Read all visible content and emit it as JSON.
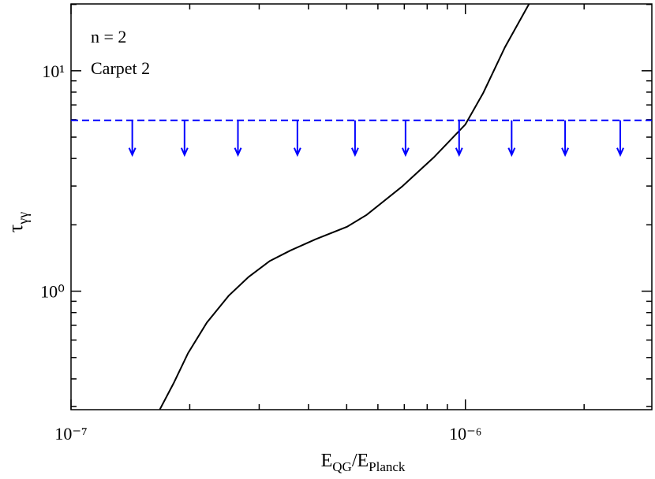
{
  "chart_data": {
    "type": "line",
    "annotations": [
      "n = 2",
      "Carpet 2"
    ],
    "xlabel": [
      "E",
      "QG",
      "/E",
      "Planck"
    ],
    "ylabel": [
      "τ",
      "γγ"
    ],
    "xlog": true,
    "ylog": true,
    "xlim": [
      1e-07,
      2.97e-06
    ],
    "ylim": [
      0.29,
      20.1
    ],
    "xticks": [
      {
        "value": 1e-07,
        "label": "10⁻⁷"
      },
      {
        "value": 1e-06,
        "label": "10⁻⁶"
      }
    ],
    "yticks": [
      {
        "value": 1,
        "label": "10⁰"
      },
      {
        "value": 10,
        "label": "10¹"
      }
    ],
    "xminorticks": [
      2e-07,
      3e-07,
      4e-07,
      5e-07,
      6e-07,
      7e-07,
      8e-07,
      9e-07,
      2e-06
    ],
    "yminorticks": [
      0.3,
      0.4,
      0.5,
      0.6,
      0.7,
      0.8,
      0.9,
      2,
      3,
      4,
      5,
      6,
      7,
      8,
      9,
      20
    ],
    "series": [
      {
        "color": "#000000",
        "x": [
          1.68e-07,
          1.82e-07,
          1.98e-07,
          2.21e-07,
          2.51e-07,
          2.82e-07,
          3.19e-07,
          3.6e-07,
          4.17e-07,
          5.01e-07,
          5.62e-07,
          6.92e-07,
          8.32e-07,
          1e-06,
          1.11e-06,
          1.26e-06,
          1.45e-06
        ],
        "values": [
          0.291,
          0.382,
          0.523,
          0.72,
          0.953,
          1.16,
          1.37,
          1.53,
          1.72,
          1.96,
          2.22,
          2.99,
          4.05,
          5.71,
          7.94,
          12.8,
          20.1
        ]
      }
    ],
    "limit": {
      "value": 5.96,
      "color": "#0000ff",
      "arrow_tip": 4.15,
      "arrows_x": [
        1.43e-07,
        1.94e-07,
        2.65e-07,
        3.75e-07,
        5.25e-07,
        7.05e-07,
        9.64e-07,
        1.31e-06,
        1.79e-06,
        2.47e-06
      ]
    }
  }
}
